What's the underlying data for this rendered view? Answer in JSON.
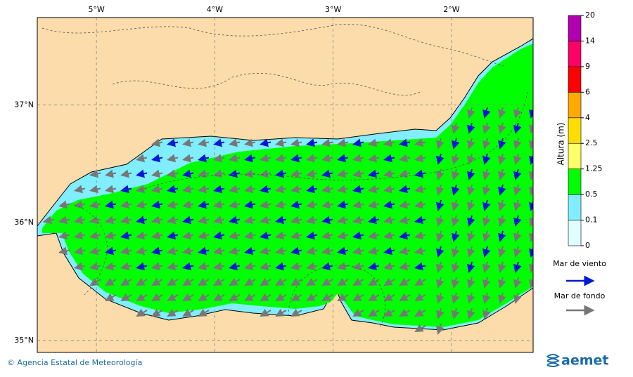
{
  "map": {
    "xlim": [
      -5.5,
      -1.31
    ],
    "ylim": [
      34.9,
      37.74
    ],
    "xticks": [
      {
        "value": -5,
        "label": "5°W"
      },
      {
        "value": -4,
        "label": "4°W"
      },
      {
        "value": -3,
        "label": "3°W"
      },
      {
        "value": -2,
        "label": "2°W"
      }
    ],
    "yticks": [
      {
        "value": 37,
        "label": "37°N"
      },
      {
        "value": 36,
        "label": "36°N"
      },
      {
        "value": 35,
        "label": "35°N"
      }
    ]
  },
  "colorbar": {
    "label": "Altura (m)",
    "ticks": [
      0,
      0.1,
      0.5,
      1.25,
      2.5,
      4,
      6,
      9,
      14,
      20
    ],
    "colors": [
      "#e0ffff",
      "#80eeff",
      "#00ff00",
      "#ffff66",
      "#ffdd00",
      "#ffaa00",
      "#ff0000",
      "#ff0066",
      "#b000b0"
    ]
  },
  "legend": {
    "wind_sea": "Mar de viento",
    "swell": "Mar de fondo"
  },
  "footer": {
    "credit": "© Agencia Estatal de Meteorología",
    "logo": "aemet"
  }
}
